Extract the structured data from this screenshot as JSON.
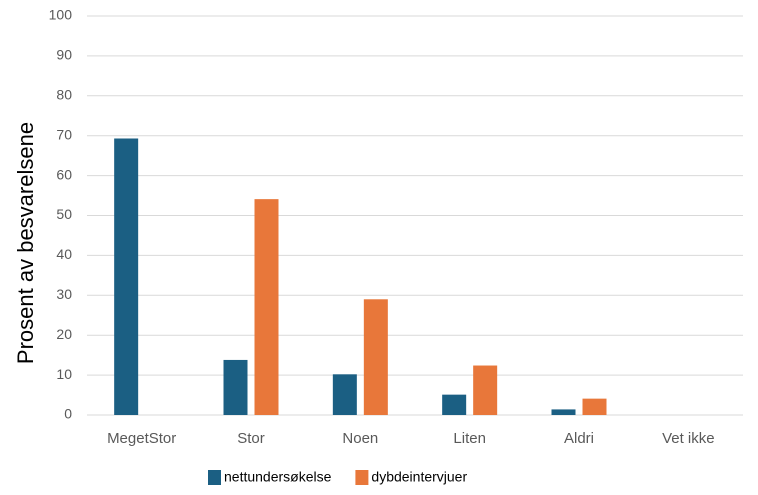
{
  "chart_data": {
    "type": "bar",
    "y_label": "Prosent av besvarelsene",
    "categories": [
      "MegetStor",
      "Stor",
      "Noen",
      "Liten",
      "Aldri",
      "Vet ikke"
    ],
    "series": [
      {
        "name": "nettundersøkelse",
        "color": "#1b5f83",
        "values": [
          69.3,
          13.8,
          10.2,
          5.1,
          1.4,
          0
        ]
      },
      {
        "name": "dybdeintervjuer",
        "color": "#e8773a",
        "values": [
          0,
          54.1,
          29.0,
          12.4,
          4.1,
          0
        ]
      }
    ],
    "ylim": [
      0,
      100
    ],
    "yticks": [
      0,
      10,
      20,
      30,
      40,
      50,
      60,
      70,
      80,
      90,
      100
    ],
    "grid": true,
    "legend": "bottom"
  }
}
